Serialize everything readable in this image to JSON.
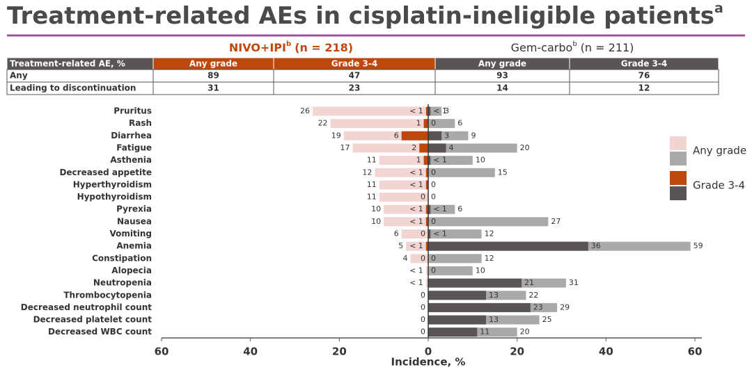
{
  "title": "Treatment-related AEs in cisplatin-ineligible patients",
  "title_sup": "a",
  "table": {
    "groups": [
      {
        "name": "NIVO+IPI",
        "sup": "b",
        "n": "(n = 218)"
      },
      {
        "name": "Gem-carbo",
        "sup": "b",
        "n": "(n = 211)"
      }
    ],
    "header": [
      "Treatment-related AE, %",
      "Any grade",
      "Grade 3-4",
      "Any grade",
      "Grade 3-4"
    ],
    "rows": [
      [
        "Any",
        89,
        47,
        93,
        76
      ],
      [
        "Leading to discontinuation",
        31,
        23,
        14,
        12
      ]
    ]
  },
  "chart_data": {
    "type": "butterfly",
    "categories": [
      "Pruritus",
      "Rash",
      "Diarrhea",
      "Fatigue",
      "Asthenia",
      "Decreased appetite",
      "Hyperthyroidism",
      "Hypothyroidism",
      "Pyrexia",
      "Nausea",
      "Vomiting",
      "Anemia",
      "Constipation",
      "Alopecia",
      "Neutropenia",
      "Thrombocytopenia",
      "Decreased neutrophil count",
      "Decreased platelet count",
      "Decreased WBC count"
    ],
    "series": [
      {
        "name": "Any grade",
        "side": "left",
        "color": "#f2d5d3",
        "values": [
          26,
          22,
          19,
          17,
          11,
          12,
          11,
          11,
          10,
          10,
          6,
          5,
          4,
          0.5,
          0.5,
          0,
          0,
          0,
          0
        ],
        "value_labels": [
          null,
          null,
          null,
          null,
          null,
          null,
          null,
          null,
          null,
          null,
          null,
          null,
          null,
          "< 1",
          "< 1",
          null,
          null,
          null,
          null
        ]
      },
      {
        "name": "Grade 3-4",
        "side": "left",
        "color": "#c0470c",
        "values": [
          0.5,
          1,
          6,
          2,
          1,
          0.5,
          0.5,
          0,
          0.5,
          0.5,
          0,
          0.5,
          0,
          null,
          null,
          null,
          null,
          null,
          null
        ],
        "value_labels": [
          "< 1",
          null,
          null,
          null,
          null,
          "< 1",
          "< 1",
          null,
          "< 1",
          "< 1",
          null,
          "< 1",
          null,
          null,
          null,
          null,
          null,
          null,
          null
        ]
      },
      {
        "name": "Any grade",
        "side": "right",
        "color": "#aba8a8",
        "values": [
          3,
          6,
          9,
          20,
          10,
          15,
          0,
          0,
          6,
          27,
          12,
          59,
          12,
          10,
          31,
          22,
          29,
          25,
          20
        ],
        "value_labels": [
          null,
          null,
          null,
          null,
          null,
          null,
          null,
          null,
          null,
          null,
          null,
          null,
          null,
          null,
          null,
          null,
          null,
          null,
          null
        ]
      },
      {
        "name": "Grade 3-4",
        "side": "right",
        "color": "#5a5454",
        "values": [
          0.5,
          0,
          3,
          4,
          0.5,
          0,
          null,
          null,
          0.5,
          0,
          0.5,
          36,
          0,
          0,
          21,
          13,
          23,
          13,
          11
        ],
        "value_labels": [
          "< 1",
          null,
          null,
          null,
          "< 1",
          null,
          null,
          null,
          "< 1",
          null,
          "< 1",
          null,
          null,
          null,
          null,
          null,
          null,
          null,
          null
        ]
      }
    ],
    "xlim": [
      -60,
      60
    ],
    "xticks": [
      {
        "value": -60,
        "label": "60"
      },
      {
        "value": -40,
        "label": "40"
      },
      {
        "value": -20,
        "label": "20"
      },
      0,
      20,
      40,
      60
    ],
    "xlabel": "Incidence, %"
  }
}
